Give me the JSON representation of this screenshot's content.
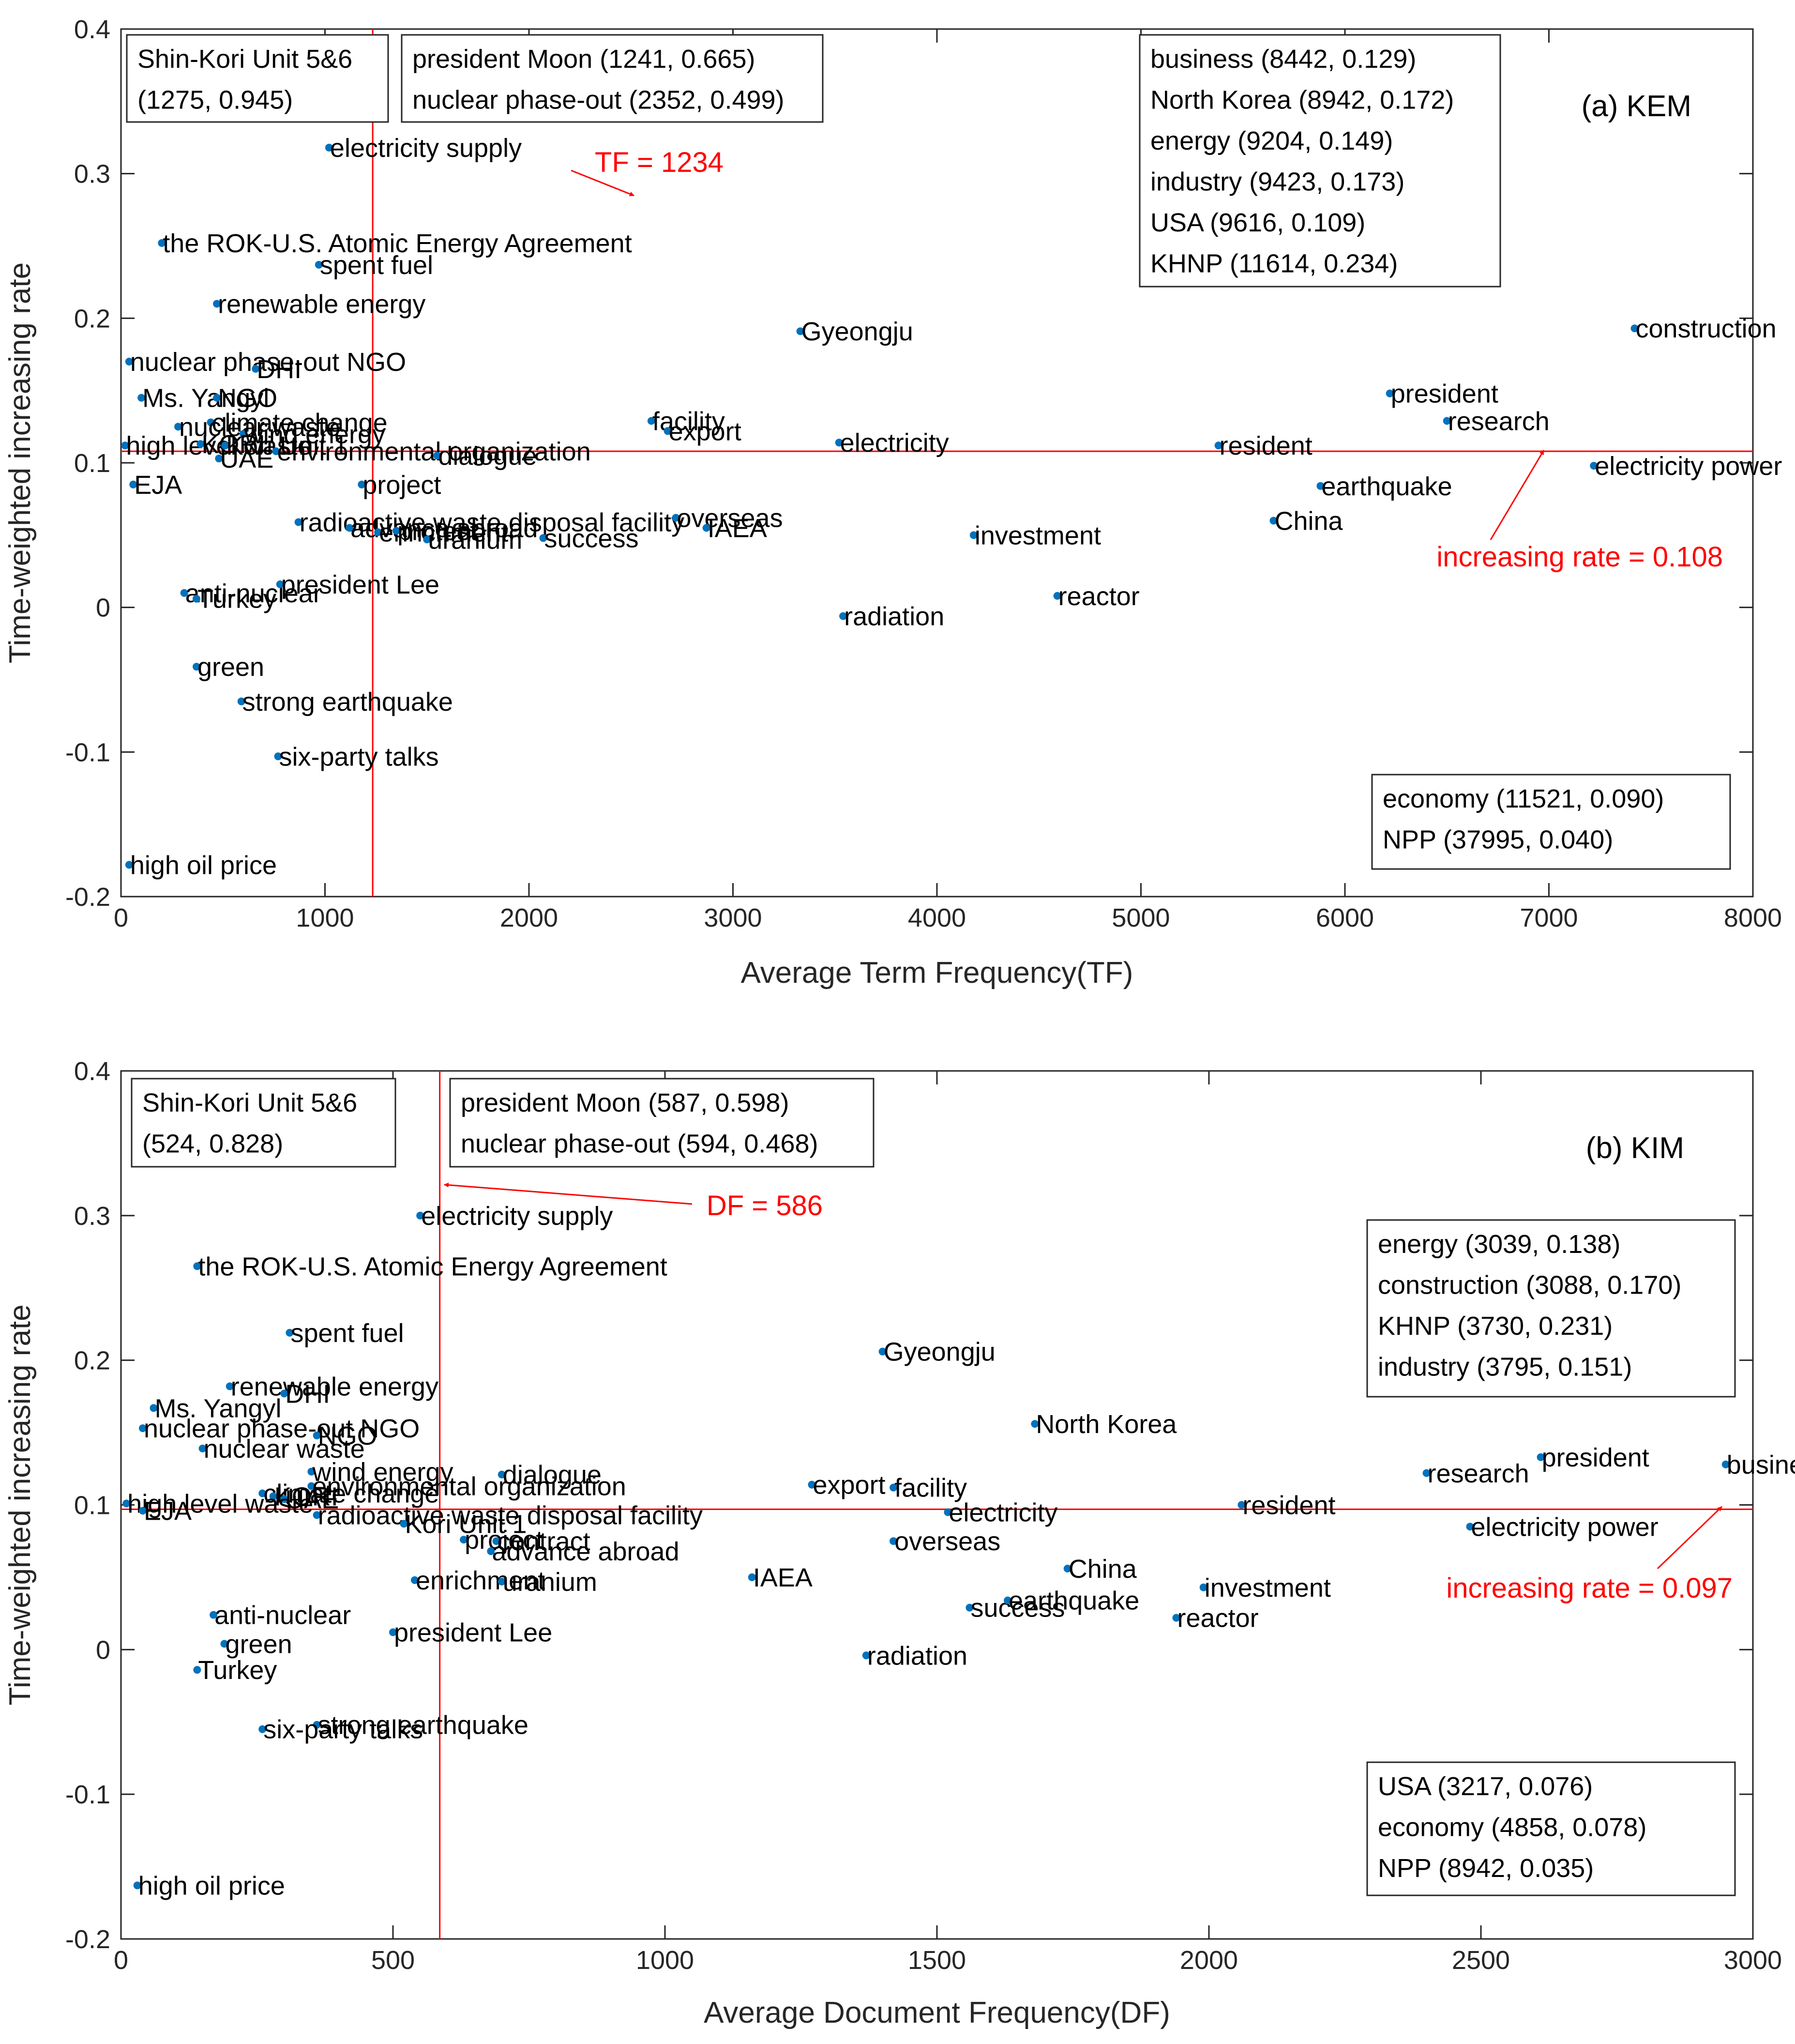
{
  "colors": {
    "point": "#0072BD",
    "threshold": "#FF0000",
    "axis": "#262626",
    "annotation_text": "#FF0000"
  },
  "chart_data": [
    {
      "type": "scatter",
      "title": "",
      "panel_label": "(a) KEM",
      "xlabel": "Average Term Frequency(TF)",
      "ylabel": "Time-weighted increasing rate",
      "xlim": [
        0,
        8000
      ],
      "ylim": [
        -0.2,
        0.4
      ],
      "xticks": [
        0,
        1000,
        2000,
        3000,
        4000,
        5000,
        6000,
        7000,
        8000
      ],
      "yticks": [
        -0.2,
        -0.1,
        0,
        0.1,
        0.2,
        0.3,
        0.4
      ],
      "grid": false,
      "threshold_x": 1234,
      "threshold_y": 0.108,
      "threshold_x_label": "TF = 1234",
      "threshold_y_label": "increasing rate = 0.108",
      "points": [
        {
          "label": "electricity supply",
          "x": 1020,
          "y": 0.318
        },
        {
          "label": "the ROK-U.S. Atomic Energy Agreement",
          "x": 200,
          "y": 0.252
        },
        {
          "label": "spent fuel",
          "x": 970,
          "y": 0.237
        },
        {
          "label": "renewable energy",
          "x": 470,
          "y": 0.21
        },
        {
          "label": "nuclear phase-out NGO",
          "x": 40,
          "y": 0.17
        },
        {
          "label": "DHI",
          "x": 660,
          "y": 0.165
        },
        {
          "label": "Ms. Yangyl",
          "x": 100,
          "y": 0.145
        },
        {
          "label": "NGO",
          "x": 470,
          "y": 0.145
        },
        {
          "label": "climate change",
          "x": 440,
          "y": 0.128
        },
        {
          "label": "nuclear waste",
          "x": 280,
          "y": 0.125
        },
        {
          "label": "wind energy",
          "x": 600,
          "y": 0.12
        },
        {
          "label": "high level waste",
          "x": 20,
          "y": 0.112
        },
        {
          "label": "KORI",
          "x": 390,
          "y": 0.113
        },
        {
          "label": "Kori Unit 1",
          "x": 510,
          "y": 0.112
        },
        {
          "label": "environmental organization",
          "x": 760,
          "y": 0.108
        },
        {
          "label": "UAE",
          "x": 480,
          "y": 0.103
        },
        {
          "label": "dialogue",
          "x": 1550,
          "y": 0.105
        },
        {
          "label": "EJA",
          "x": 60,
          "y": 0.085
        },
        {
          "label": "project",
          "x": 1180,
          "y": 0.085
        },
        {
          "label": "facility",
          "x": 2600,
          "y": 0.129
        },
        {
          "label": "export",
          "x": 2680,
          "y": 0.122
        },
        {
          "label": "Gyeongju",
          "x": 3330,
          "y": 0.191
        },
        {
          "label": "electricity",
          "x": 3520,
          "y": 0.114
        },
        {
          "label": "radioactive waste disposal facility",
          "x": 870,
          "y": 0.059
        },
        {
          "label": "advance abroad",
          "x": 1120,
          "y": 0.055
        },
        {
          "label": "enrichment",
          "x": 1260,
          "y": 0.052
        },
        {
          "label": "protest",
          "x": 1350,
          "y": 0.053
        },
        {
          "label": "uranium",
          "x": 1500,
          "y": 0.047
        },
        {
          "label": "overseas",
          "x": 2720,
          "y": 0.062
        },
        {
          "label": "IAEA",
          "x": 2870,
          "y": 0.055
        },
        {
          "label": "success",
          "x": 2070,
          "y": 0.048
        },
        {
          "label": "investment",
          "x": 4180,
          "y": 0.05
        },
        {
          "label": "anti-nuclear",
          "x": 310,
          "y": 0.01
        },
        {
          "label": "Turkey",
          "x": 370,
          "y": 0.006
        },
        {
          "label": "president Lee",
          "x": 780,
          "y": 0.016
        },
        {
          "label": "radiation",
          "x": 3540,
          "y": -0.006
        },
        {
          "label": "reactor",
          "x": 4590,
          "y": 0.008
        },
        {
          "label": "green",
          "x": 370,
          "y": -0.041
        },
        {
          "label": "strong earthquake",
          "x": 590,
          "y": -0.065
        },
        {
          "label": "six-party talks",
          "x": 770,
          "y": -0.103
        },
        {
          "label": "high oil price",
          "x": 40,
          "y": -0.178
        },
        {
          "label": "construction",
          "x": 7420,
          "y": 0.193
        },
        {
          "label": "president",
          "x": 6220,
          "y": 0.148
        },
        {
          "label": "research",
          "x": 6500,
          "y": 0.129
        },
        {
          "label": "resident",
          "x": 5380,
          "y": 0.112
        },
        {
          "label": "earthquake",
          "x": 5880,
          "y": 0.084
        },
        {
          "label": "electricity power",
          "x": 7220,
          "y": 0.098
        },
        {
          "label": "China",
          "x": 5650,
          "y": 0.06
        }
      ],
      "legend_boxes": [
        {
          "lines": [
            "Shin-Kori Unit 5&6",
            "(1275, 0.945)"
          ]
        },
        {
          "lines": [
            "president Moon (1241, 0.665)",
            "nuclear phase-out (2352, 0.499)"
          ]
        },
        {
          "lines": [
            "business (8442, 0.129)",
            "North Korea (8942, 0.172)",
            "energy (9204, 0.149)",
            "industry (9423, 0.173)",
            "USA (9616, 0.109)",
            "KHNP (11614, 0.234)"
          ]
        },
        {
          "lines": [
            "economy (11521, 0.090)",
            "NPP (37995, 0.040)"
          ]
        }
      ]
    },
    {
      "type": "scatter",
      "title": "",
      "panel_label": "(b) KIM",
      "xlabel": "Average Document Frequency(DF)",
      "ylabel": "Time-weighted increasing rate",
      "xlim": [
        0,
        3000
      ],
      "ylim": [
        -0.2,
        0.4
      ],
      "xticks": [
        0,
        500,
        1000,
        1500,
        2000,
        2500,
        3000
      ],
      "yticks": [
        -0.2,
        -0.1,
        0,
        0.1,
        0.2,
        0.3,
        0.4
      ],
      "grid": false,
      "threshold_x": 586,
      "threshold_y": 0.097,
      "threshold_x_label": "DF = 586",
      "threshold_y_label": "increasing rate = 0.097",
      "points": [
        {
          "label": "electricity supply",
          "x": 550,
          "y": 0.3
        },
        {
          "label": "the ROK-U.S. Atomic Energy Agreement",
          "x": 140,
          "y": 0.265
        },
        {
          "label": "spent fuel",
          "x": 310,
          "y": 0.219
        },
        {
          "label": "renewable energy",
          "x": 200,
          "y": 0.182
        },
        {
          "label": "DHI",
          "x": 300,
          "y": 0.177
        },
        {
          "label": "Ms. Yangyl",
          "x": 60,
          "y": 0.167
        },
        {
          "label": "nuclear phase-out NGO",
          "x": 40,
          "y": 0.153
        },
        {
          "label": "NGO",
          "x": 360,
          "y": 0.148
        },
        {
          "label": "nuclear waste",
          "x": 150,
          "y": 0.139
        },
        {
          "label": "wind energy",
          "x": 350,
          "y": 0.123
        },
        {
          "label": "dialogue",
          "x": 700,
          "y": 0.121
        },
        {
          "label": "environmental organization",
          "x": 350,
          "y": 0.113
        },
        {
          "label": "climate change",
          "x": 260,
          "y": 0.108
        },
        {
          "label": "KORI",
          "x": 280,
          "y": 0.106
        },
        {
          "label": "UAE",
          "x": 300,
          "y": 0.104
        },
        {
          "label": "high level waste",
          "x": 10,
          "y": 0.101
        },
        {
          "label": "EJA",
          "x": 40,
          "y": 0.096
        },
        {
          "label": "radioactive waste disposal facility",
          "x": 360,
          "y": 0.093
        },
        {
          "label": "Kori Unit 1",
          "x": 520,
          "y": 0.087
        },
        {
          "label": "project",
          "x": 630,
          "y": 0.076
        },
        {
          "label": "contract",
          "x": 690,
          "y": 0.075
        },
        {
          "label": "advance abroad",
          "x": 680,
          "y": 0.068
        },
        {
          "label": "enrichment",
          "x": 540,
          "y": 0.048
        },
        {
          "label": "uranium",
          "x": 700,
          "y": 0.047
        },
        {
          "label": "IAEA",
          "x": 1160,
          "y": 0.05
        },
        {
          "label": "export",
          "x": 1270,
          "y": 0.114
        },
        {
          "label": "facility",
          "x": 1420,
          "y": 0.112
        },
        {
          "label": "Gyeongju",
          "x": 1400,
          "y": 0.206
        },
        {
          "label": "electricity",
          "x": 1520,
          "y": 0.095
        },
        {
          "label": "overseas",
          "x": 1420,
          "y": 0.075
        },
        {
          "label": "North Korea",
          "x": 1680,
          "y": 0.156
        },
        {
          "label": "China",
          "x": 1740,
          "y": 0.056
        },
        {
          "label": "success",
          "x": 1560,
          "y": 0.029
        },
        {
          "label": "earthquake",
          "x": 1630,
          "y": 0.034
        },
        {
          "label": "investment",
          "x": 1990,
          "y": 0.043
        },
        {
          "label": "reactor",
          "x": 1940,
          "y": 0.022
        },
        {
          "label": "resident",
          "x": 2060,
          "y": 0.1
        },
        {
          "label": "anti-nuclear",
          "x": 170,
          "y": 0.024
        },
        {
          "label": "green",
          "x": 190,
          "y": 0.004
        },
        {
          "label": "president Lee",
          "x": 500,
          "y": 0.012
        },
        {
          "label": "Turkey",
          "x": 140,
          "y": -0.014
        },
        {
          "label": "radiation",
          "x": 1370,
          "y": -0.004
        },
        {
          "label": "strong earthquake",
          "x": 360,
          "y": -0.052
        },
        {
          "label": "six-party talks",
          "x": 260,
          "y": -0.055
        },
        {
          "label": "high oil price",
          "x": 30,
          "y": -0.163
        },
        {
          "label": "research",
          "x": 2400,
          "y": 0.122
        },
        {
          "label": "president",
          "x": 2610,
          "y": 0.133
        },
        {
          "label": "business",
          "x": 2950,
          "y": 0.128
        },
        {
          "label": "electricity power",
          "x": 2480,
          "y": 0.085
        }
      ],
      "legend_boxes": [
        {
          "lines": [
            "Shin-Kori Unit 5&6",
            "(524, 0.828)"
          ]
        },
        {
          "lines": [
            "president Moon (587, 0.598)",
            "nuclear phase-out (594, 0.468)"
          ]
        },
        {
          "lines": [
            "energy (3039, 0.138)",
            "construction (3088, 0.170)",
            "KHNP (3730, 0.231)",
            "industry (3795, 0.151)"
          ]
        },
        {
          "lines": [
            "USA (3217, 0.076)",
            "economy (4858, 0.078)",
            "NPP (8942, 0.035)"
          ]
        }
      ]
    }
  ]
}
